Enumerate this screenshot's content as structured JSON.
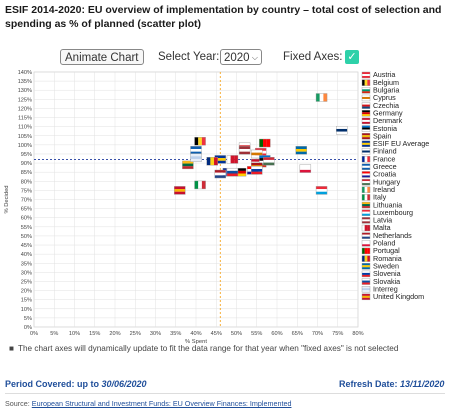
{
  "title": "ESIF 2014-2020: EU overview of implementation by country – total cost of selection and spending as % of planned (scatter plot)",
  "controls": {
    "animate_label": "Animate Chart",
    "year_label": "Select Year:",
    "year_value": "2020",
    "fixed_axes_label": "Fixed Axes:",
    "fixed_axes_checked": true
  },
  "note": "The chart axes will dynamically update to fit the data range for that year when \"fixed axes\" is not selected",
  "period": {
    "label": "Period Covered: up to ",
    "value": "30/06/2020"
  },
  "refresh": {
    "label": "Refresh Date: ",
    "value": "13/11/2020"
  },
  "source": {
    "label": "Source: ",
    "link": "European Structural and Investment Funds: EU Overview Finances: Implemented"
  },
  "chart_data": {
    "type": "scatter",
    "xlabel": "% Spent",
    "ylabel": "% Decided",
    "xlim": [
      0,
      80
    ],
    "ylim": [
      0,
      140
    ],
    "x_ticks": [
      "0%",
      "5%",
      "10%",
      "15%",
      "20%",
      "25%",
      "30%",
      "35%",
      "40%",
      "45%",
      "50%",
      "55%",
      "60%",
      "65%",
      "70%",
      "75%",
      "80%"
    ],
    "y_ticks": [
      "0%",
      "5%",
      "10%",
      "15%",
      "20%",
      "25%",
      "30%",
      "35%",
      "40%",
      "45%",
      "50%",
      "55%",
      "60%",
      "65%",
      "70%",
      "75%",
      "80%",
      "85%",
      "90%",
      "95%",
      "100%",
      "105%",
      "110%",
      "115%",
      "120%",
      "125%",
      "130%",
      "135%",
      "140%"
    ],
    "grid": true,
    "legend_position": "right",
    "reference_lines": {
      "avg_spent": 46,
      "avg_decided": 92
    },
    "series": [
      {
        "name": "Austria",
        "x": 56,
        "y": 96,
        "colors": [
          "#ed2939",
          "#ffffff",
          "#ed2939"
        ],
        "stripe": "h"
      },
      {
        "name": "Belgium",
        "x": 41,
        "y": 102,
        "colors": [
          "#000000",
          "#fdda24",
          "#ef3340"
        ],
        "stripe": "v"
      },
      {
        "name": "Bulgaria",
        "x": 56,
        "y": 90,
        "colors": [
          "#ffffff",
          "#00966e",
          "#d62612"
        ],
        "stripe": "h"
      },
      {
        "name": "Cyprus",
        "x": 55,
        "y": 95,
        "colors": [
          "#ffffff",
          "#d57800",
          "#ffffff"
        ],
        "stripe": "h"
      },
      {
        "name": "Czechia",
        "x": 52,
        "y": 99,
        "colors": [
          "#ffffff",
          "#d7141a",
          "#11457e"
        ],
        "stripe": "h"
      },
      {
        "name": "Germany",
        "x": 51,
        "y": 85,
        "colors": [
          "#000000",
          "#dd0000",
          "#ffce00"
        ],
        "stripe": "h"
      },
      {
        "name": "Denmark",
        "x": 55,
        "y": 90,
        "colors": [
          "#c8102e",
          "#ffffff",
          "#c8102e"
        ],
        "stripe": "h"
      },
      {
        "name": "Estonia",
        "x": 57,
        "y": 92,
        "colors": [
          "#0072ce",
          "#000000",
          "#ffffff"
        ],
        "stripe": "h"
      },
      {
        "name": "Spain",
        "x": 55,
        "y": 88,
        "colors": [
          "#aa151b",
          "#f1bf00",
          "#aa151b"
        ],
        "stripe": "h"
      },
      {
        "name": "ESIF EU Average",
        "x": 46,
        "y": 92,
        "colors": [
          "#003399",
          "#ffcc00",
          "#003399"
        ],
        "stripe": "h"
      },
      {
        "name": "Finland",
        "x": 76,
        "y": 108,
        "colors": [
          "#ffffff",
          "#002f6c",
          "#ffffff"
        ],
        "stripe": "h"
      },
      {
        "name": "France",
        "x": 48,
        "y": 85,
        "colors": [
          "#002395",
          "#ffffff",
          "#ed2939"
        ],
        "stripe": "v"
      },
      {
        "name": "Greece",
        "x": 40,
        "y": 97,
        "colors": [
          "#0d5eaf",
          "#ffffff",
          "#0d5eaf"
        ],
        "stripe": "h"
      },
      {
        "name": "Croatia",
        "x": 54,
        "y": 86,
        "colors": [
          "#ff0000",
          "#ffffff",
          "#171796"
        ],
        "stripe": "h"
      },
      {
        "name": "Hungary",
        "x": 58,
        "y": 91,
        "colors": [
          "#ce2939",
          "#ffffff",
          "#477050"
        ],
        "stripe": "h"
      },
      {
        "name": "Ireland",
        "x": 71,
        "y": 126,
        "colors": [
          "#169b62",
          "#ffffff",
          "#ff883e"
        ],
        "stripe": "v"
      },
      {
        "name": "Italy",
        "x": 41,
        "y": 78,
        "colors": [
          "#009246",
          "#ffffff",
          "#ce2b37"
        ],
        "stripe": "v"
      },
      {
        "name": "Lithuania",
        "x": 38,
        "y": 89,
        "colors": [
          "#fdb913",
          "#006a44",
          "#c1272d"
        ],
        "stripe": "h"
      },
      {
        "name": "Luxembourg",
        "x": 71,
        "y": 75,
        "colors": [
          "#ed2939",
          "#ffffff",
          "#00a1de"
        ],
        "stripe": "h"
      },
      {
        "name": "Latvia",
        "x": 52,
        "y": 97,
        "colors": [
          "#9e3039",
          "#ffffff",
          "#9e3039"
        ],
        "stripe": "h"
      },
      {
        "name": "Malta",
        "x": 49,
        "y": 92,
        "colors": [
          "#ffffff",
          "#cf142b",
          "#cf142b"
        ],
        "stripe": "v"
      },
      {
        "name": "Netherlands",
        "x": 46,
        "y": 84,
        "colors": [
          "#ae1c28",
          "#ffffff",
          "#21468b"
        ],
        "stripe": "h"
      },
      {
        "name": "Poland",
        "x": 67,
        "y": 87,
        "colors": [
          "#ffffff",
          "#ffffff",
          "#dc143c"
        ],
        "stripe": "h"
      },
      {
        "name": "Portugal",
        "x": 57,
        "y": 101,
        "colors": [
          "#006600",
          "#ff0000",
          "#ff0000"
        ],
        "stripe": "v"
      },
      {
        "name": "Romania",
        "x": 44,
        "y": 91,
        "colors": [
          "#002b7f",
          "#fcd116",
          "#ce1126"
        ],
        "stripe": "v"
      },
      {
        "name": "Sweden",
        "x": 66,
        "y": 97,
        "colors": [
          "#006aa7",
          "#fecc00",
          "#006aa7"
        ],
        "stripe": "h"
      },
      {
        "name": "Slovenia",
        "x": 55,
        "y": 86,
        "colors": [
          "#ffffff",
          "#003da5",
          "#ed1c24"
        ],
        "stripe": "h"
      },
      {
        "name": "Slovakia",
        "x": 49,
        "y": 85,
        "colors": [
          "#ffffff",
          "#0b4ea2",
          "#ee1c25"
        ],
        "stripe": "h"
      },
      {
        "name": "Interreg",
        "x": 40,
        "y": 93,
        "colors": [
          "#e8eef8",
          "#bcd0ec",
          "#e8eef8"
        ],
        "stripe": "h"
      },
      {
        "name": "United Kingdom",
        "x": 36,
        "y": 75,
        "colors": [
          "#c8102e",
          "#f7b500",
          "#c8102e"
        ],
        "stripe": "h"
      }
    ]
  }
}
